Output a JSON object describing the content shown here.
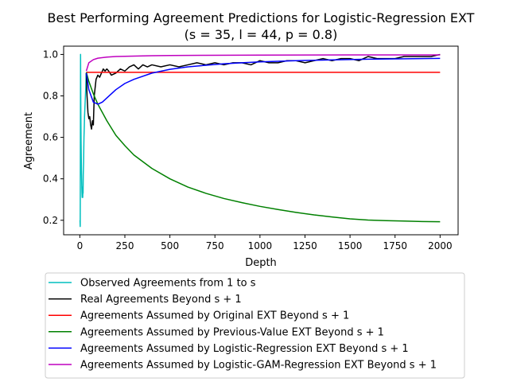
{
  "chart_data": {
    "type": "line",
    "title": "Best Performing Agreement Predictions for Logistic-Regression EXT",
    "subtitle": "(s = 35, l = 44, p = 0.8)",
    "xlabel": "Depth",
    "ylabel": "Agreement",
    "xlim": [
      -90,
      2100
    ],
    "ylim": [
      0.13,
      1.04
    ],
    "xticks": [
      0,
      250,
      500,
      750,
      1000,
      1250,
      1500,
      1750,
      2000
    ],
    "yticks": [
      0.2,
      0.4,
      0.6,
      0.8,
      1.0
    ],
    "xtick_labels": [
      "0",
      "250",
      "500",
      "750",
      "1000",
      "1250",
      "1500",
      "1750",
      "2000"
    ],
    "ytick_labels": [
      "0.2",
      "0.4",
      "0.6",
      "0.8",
      "1.0"
    ],
    "grid": false,
    "legend_position": "below",
    "series": [
      {
        "name": "Observed Agreements from 1 to s",
        "color": "#00bfbf",
        "x": [
          1,
          2,
          3,
          4,
          5,
          6,
          7,
          8,
          9,
          10,
          11,
          12,
          13,
          14,
          15,
          16,
          17,
          18,
          19,
          20,
          21,
          22,
          23,
          24,
          25,
          26,
          27,
          28,
          29,
          30,
          31,
          32,
          33,
          34,
          35
        ],
        "y": [
          0.2,
          0.17,
          0.5,
          1.0,
          0.8,
          0.67,
          0.57,
          0.5,
          0.44,
          0.4,
          0.36,
          0.33,
          0.31,
          0.36,
          0.33,
          0.31,
          0.35,
          0.33,
          0.42,
          0.45,
          0.48,
          0.55,
          0.6,
          0.63,
          0.66,
          0.7,
          0.72,
          0.74,
          0.76,
          0.78,
          0.8,
          0.82,
          0.84,
          0.87,
          0.91
        ]
      },
      {
        "name": "Real Agreements Beyond s + 1",
        "color": "#000000",
        "x": [
          36,
          40,
          45,
          50,
          55,
          60,
          65,
          70,
          75,
          80,
          90,
          100,
          110,
          120,
          130,
          140,
          150,
          160,
          175,
          200,
          225,
          250,
          275,
          300,
          325,
          350,
          375,
          400,
          450,
          500,
          550,
          600,
          650,
          700,
          750,
          800,
          850,
          900,
          950,
          1000,
          1050,
          1100,
          1150,
          1200,
          1250,
          1300,
          1350,
          1400,
          1450,
          1500,
          1550,
          1600,
          1650,
          1700,
          1750,
          1800,
          1850,
          1900,
          1950,
          2000
        ],
        "y": [
          0.91,
          0.8,
          0.72,
          0.69,
          0.7,
          0.66,
          0.64,
          0.68,
          0.66,
          0.8,
          0.88,
          0.9,
          0.89,
          0.91,
          0.93,
          0.92,
          0.93,
          0.92,
          0.9,
          0.91,
          0.93,
          0.92,
          0.94,
          0.95,
          0.93,
          0.95,
          0.94,
          0.95,
          0.94,
          0.95,
          0.94,
          0.95,
          0.96,
          0.95,
          0.96,
          0.95,
          0.96,
          0.96,
          0.95,
          0.97,
          0.96,
          0.96,
          0.97,
          0.97,
          0.96,
          0.97,
          0.98,
          0.97,
          0.98,
          0.98,
          0.97,
          0.99,
          0.98,
          0.98,
          0.98,
          0.99,
          0.99,
          0.99,
          0.99,
          1.0
        ]
      },
      {
        "name": "Agreements Assumed by Original EXT Beyond s + 1",
        "color": "#ff0000",
        "x": [
          36,
          2000
        ],
        "y": [
          0.914,
          0.914
        ]
      },
      {
        "name": "Agreements Assumed by Previous-Value EXT Beyond s + 1",
        "color": "#008000",
        "x": [
          36,
          50,
          75,
          100,
          150,
          200,
          250,
          300,
          400,
          500,
          600,
          700,
          800,
          900,
          1000,
          1100,
          1200,
          1300,
          1400,
          1500,
          1600,
          1700,
          1800,
          1900,
          2000
        ],
        "y": [
          0.914,
          0.87,
          0.81,
          0.76,
          0.68,
          0.61,
          0.56,
          0.515,
          0.45,
          0.4,
          0.36,
          0.33,
          0.305,
          0.285,
          0.267,
          0.252,
          0.238,
          0.226,
          0.216,
          0.207,
          0.201,
          0.198,
          0.196,
          0.194,
          0.193
        ]
      },
      {
        "name": "Agreements Assumed by Logistic-Regression EXT Beyond s + 1",
        "color": "#0000ff",
        "x": [
          36,
          50,
          75,
          100,
          125,
          150,
          200,
          250,
          300,
          400,
          500,
          600,
          700,
          800,
          900,
          1000,
          1200,
          1400,
          1600,
          1800,
          2000
        ],
        "y": [
          0.91,
          0.83,
          0.77,
          0.76,
          0.77,
          0.79,
          0.83,
          0.86,
          0.88,
          0.91,
          0.928,
          0.94,
          0.948,
          0.955,
          0.96,
          0.964,
          0.97,
          0.974,
          0.977,
          0.979,
          0.981
        ]
      },
      {
        "name": "Agreements Assumed by Logistic-GAM-Regression EXT Beyond s + 1",
        "color": "#bf00bf",
        "x": [
          36,
          50,
          75,
          100,
          150,
          200,
          300,
          400,
          500,
          700,
          1000,
          1500,
          2000
        ],
        "y": [
          0.92,
          0.96,
          0.975,
          0.982,
          0.987,
          0.99,
          0.992,
          0.994,
          0.995,
          0.996,
          0.997,
          0.998,
          0.998
        ]
      }
    ]
  }
}
